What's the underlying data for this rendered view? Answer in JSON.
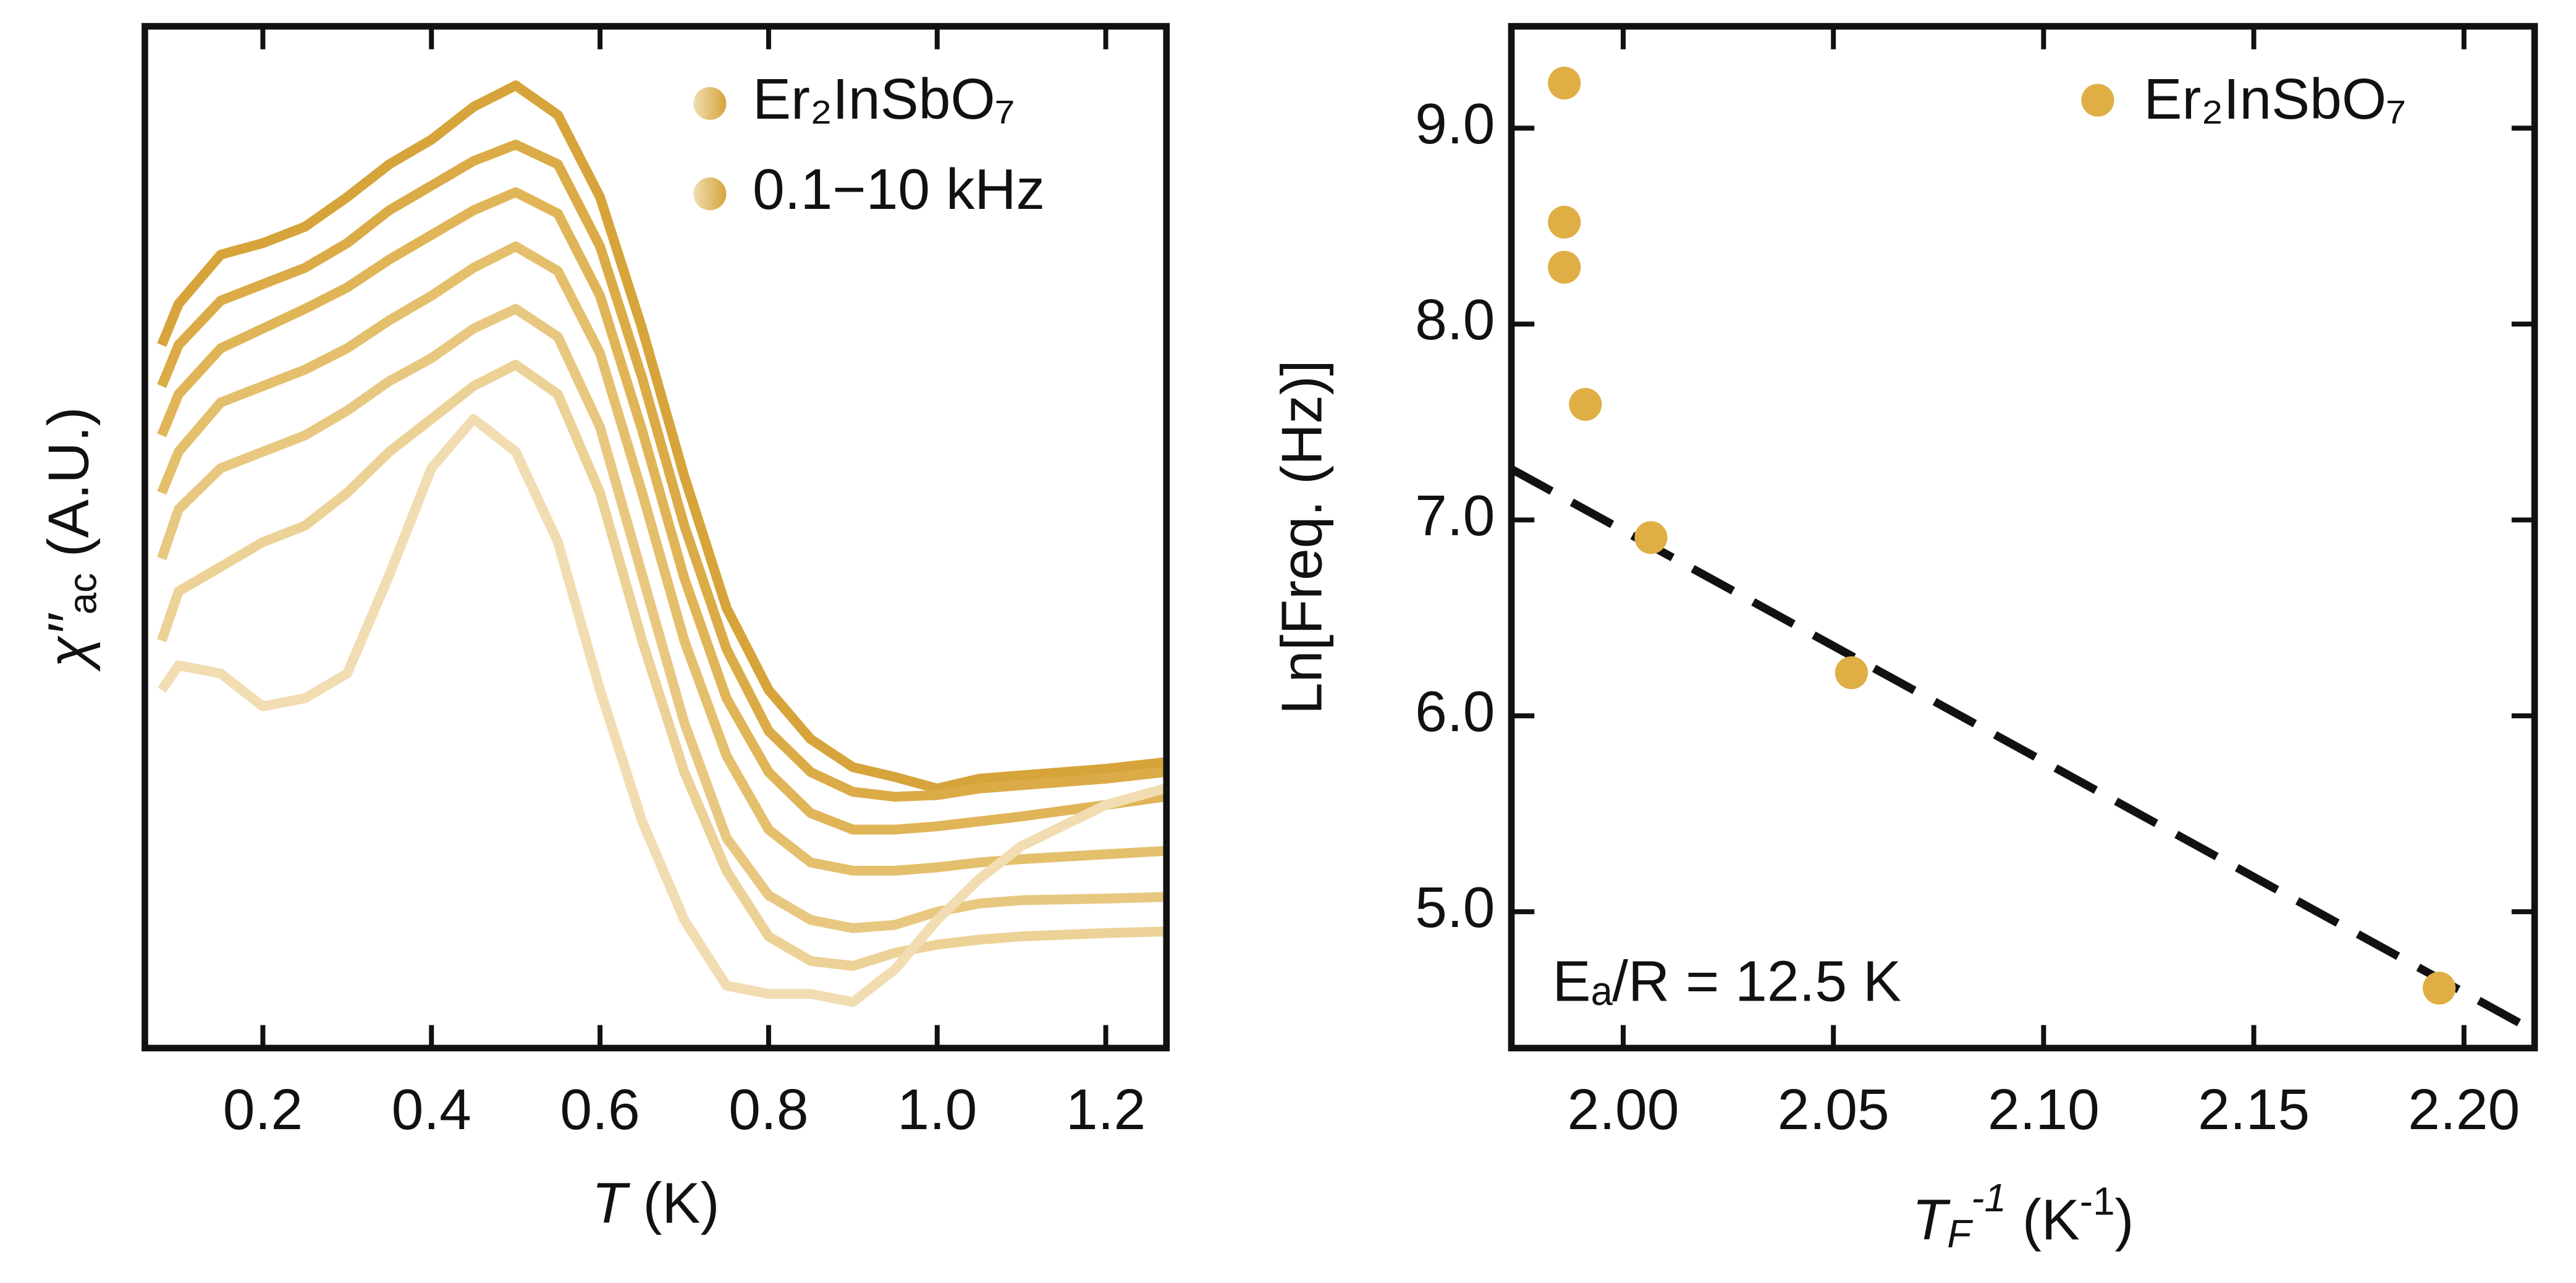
{
  "chart_data": [
    {
      "type": "line",
      "xlabel": {
        "symbol": "T",
        "rest": " (K)"
      },
      "ylabel": {
        "symbol": "χ′′",
        "sub": "ac",
        "rest": " (A.U.)"
      },
      "legend": [
        "Er₂InSbO₇",
        "0.1−10 kHz"
      ],
      "x": [
        0.08,
        0.1,
        0.15,
        0.2,
        0.25,
        0.3,
        0.35,
        0.4,
        0.45,
        0.5,
        0.55,
        0.6,
        0.65,
        0.7,
        0.75,
        0.8,
        0.85,
        0.9,
        0.95,
        1.0,
        1.05,
        1.1,
        1.2,
        1.27
      ],
      "xlim": [
        0.06,
        1.272
      ],
      "xticks": [
        0.2,
        0.4,
        0.6,
        0.8,
        {
          "value": 1,
          "label": "1.0"
        },
        1.2
      ],
      "ylim": [
        0,
        622
      ],
      "series": [
        {
          "color": "#d6a43a",
          "values": [
            428,
            453,
            483,
            490,
            500,
            518,
            538,
            553,
            573,
            586,
            568,
            518,
            438,
            348,
            268,
            218,
            188,
            171,
            165,
            158,
            164,
            166,
            170,
            174
          ]
        },
        {
          "color": "#dbab47",
          "values": [
            403,
            428,
            455,
            465,
            475,
            490,
            510,
            525,
            540,
            550,
            538,
            488,
            408,
            318,
            243,
            193,
            168,
            156,
            153,
            154,
            158,
            160,
            164,
            168
          ]
        },
        {
          "color": "#e0b558",
          "values": [
            373,
            398,
            426,
            438,
            450,
            463,
            480,
            495,
            510,
            521,
            508,
            458,
            376,
            286,
            213,
            168,
            143,
            133,
            133,
            135,
            138,
            141,
            148,
            153
          ]
        },
        {
          "color": "#e4bf6c",
          "values": [
            338,
            363,
            393,
            403,
            413,
            426,
            443,
            458,
            475,
            488,
            473,
            423,
            338,
            248,
            178,
            133,
            113,
            108,
            108,
            110,
            113,
            115,
            118,
            120
          ]
        },
        {
          "color": "#e8c880",
          "values": [
            298,
            328,
            353,
            363,
            373,
            388,
            406,
            420,
            438,
            450,
            433,
            378,
            288,
            198,
            128,
            93,
            78,
            73,
            75,
            83,
            88,
            90,
            91,
            92
          ]
        },
        {
          "color": "#ecd296",
          "values": [
            248,
            278,
            293,
            308,
            318,
            338,
            363,
            383,
            403,
            416,
            398,
            338,
            248,
            168,
            108,
            68,
            53,
            50,
            58,
            63,
            66,
            68,
            70,
            71
          ]
        },
        {
          "color": "#f1ddb1",
          "values": [
            218,
            233,
            228,
            208,
            213,
            228,
            288,
            353,
            383,
            363,
            308,
            218,
            138,
            78,
            38,
            33,
            33,
            28,
            48,
            78,
            103,
            123,
            148,
            158
          ]
        }
      ]
    },
    {
      "type": "scatter",
      "xlabel": {
        "symbol": "T",
        "sub": "F",
        "sup": "-1",
        "rest": " (K",
        "sup2": "-1",
        "end": ")"
      },
      "ylabel": "Ln[Freq. (Hz)]",
      "legend": [
        "Er₂InSbO₇"
      ],
      "annotation": "Eₐ/R = 12.5 K",
      "color": "#dfae45",
      "x": [
        1.986,
        1.986,
        1.986,
        1.991,
        2.0066,
        2.0543,
        2.1941
      ],
      "values": [
        9.23,
        8.52,
        8.29,
        7.59,
        6.91,
        6.22,
        4.61
      ],
      "fit": {
        "x": [
          1.9734,
          2.2168
        ],
        "y": [
          7.26,
          4.39
        ]
      },
      "xlim": [
        1.9734,
        2.2168
      ],
      "xticks": [
        {
          "value": 2,
          "label": "2.00"
        },
        2.05,
        {
          "value": 2.1,
          "label": "2.10"
        },
        2.15,
        {
          "value": 2.2,
          "label": "2.20"
        }
      ],
      "ylim": [
        4.304,
        9.52
      ],
      "yticks": [
        {
          "value": 5,
          "label": "5.0"
        },
        {
          "value": 6,
          "label": "6.0"
        },
        {
          "value": 7,
          "label": "7.0"
        },
        {
          "value": 8,
          "label": "8.0"
        },
        {
          "value": 9,
          "label": "9.0"
        }
      ]
    }
  ]
}
